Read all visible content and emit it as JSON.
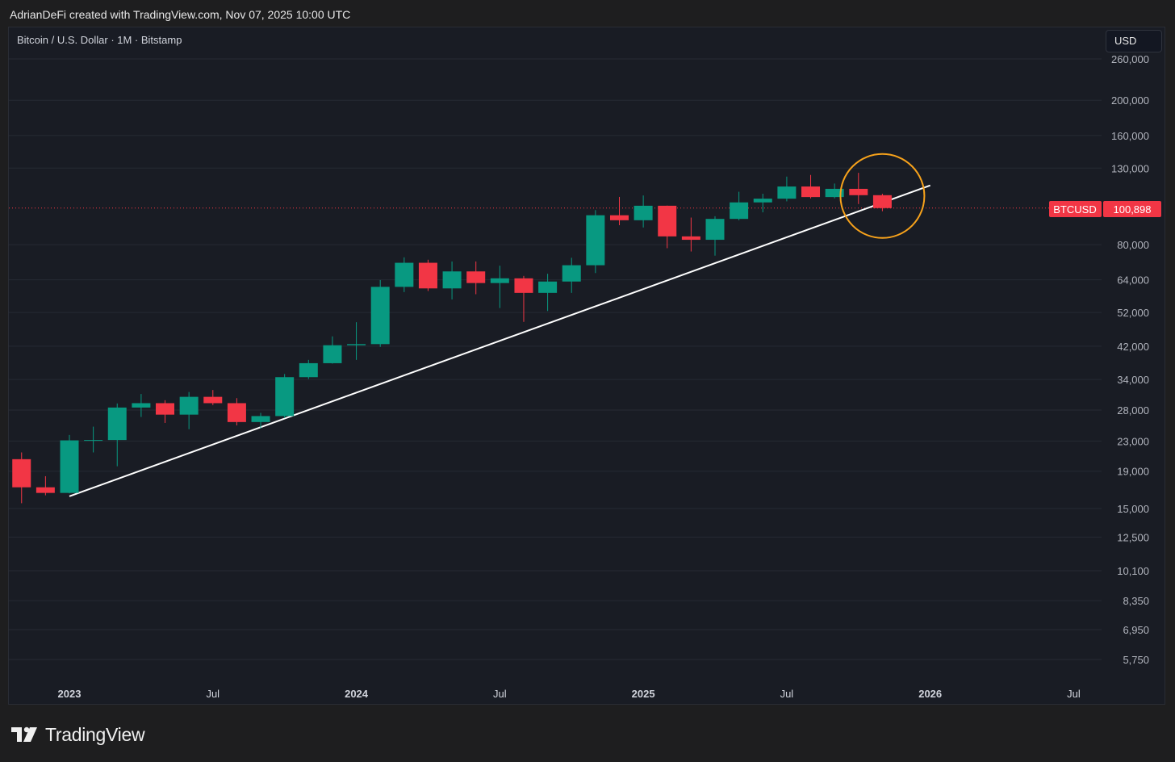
{
  "header": {
    "credit": "AdrianDeFi created with TradingView.com, Nov 07, 2025 10:00 UTC"
  },
  "chart_header": {
    "symbol": "Bitcoin / U.S. Dollar · 1M · Bitstamp",
    "currency": "USD"
  },
  "footer": {
    "brand": "TradingView"
  },
  "colors": {
    "background": "#191c24",
    "up": "#089981",
    "down": "#f23645",
    "trendline": "#ffffff",
    "highlight_circle": "#f7a21b",
    "price_line": "#f23645"
  },
  "chart_data": {
    "type": "candlestick",
    "scale": "log",
    "symbol": "BTCUSD",
    "last_price": "100,898",
    "ylim": [
      5200,
      300000
    ],
    "y_ticks": [
      "260,000",
      "200,000",
      "160,000",
      "130,000",
      "80,000",
      "64,000",
      "52,000",
      "42,000",
      "34,000",
      "28,000",
      "23,000",
      "19,000",
      "15,000",
      "12,500",
      "10,100",
      "8,350",
      "6,950",
      "5,750"
    ],
    "x_ticks": [
      {
        "label": "2023",
        "date": "2023-01",
        "bold": true
      },
      {
        "label": "Jul",
        "date": "2023-07",
        "bold": false
      },
      {
        "label": "2024",
        "date": "2024-01",
        "bold": true
      },
      {
        "label": "Jul",
        "date": "2024-07",
        "bold": false
      },
      {
        "label": "2025",
        "date": "2025-01",
        "bold": true
      },
      {
        "label": "Jul",
        "date": "2025-07",
        "bold": false
      },
      {
        "label": "2026",
        "date": "2026-01",
        "bold": true
      },
      {
        "label": "Jul",
        "date": "2026-07",
        "bold": false
      }
    ],
    "candles": [
      {
        "date": "2022-11",
        "open": 20500,
        "high": 21400,
        "low": 15500,
        "close": 17150
      },
      {
        "date": "2022-12",
        "open": 17150,
        "high": 18400,
        "low": 16300,
        "close": 16550
      },
      {
        "date": "2023-01",
        "open": 16550,
        "high": 23900,
        "low": 16500,
        "close": 23100
      },
      {
        "date": "2023-02",
        "open": 23100,
        "high": 25200,
        "low": 21400,
        "close": 23150
      },
      {
        "date": "2023-03",
        "open": 23150,
        "high": 29200,
        "low": 19600,
        "close": 28450
      },
      {
        "date": "2023-04",
        "open": 28450,
        "high": 31000,
        "low": 26800,
        "close": 29250
      },
      {
        "date": "2023-05",
        "open": 29250,
        "high": 29800,
        "low": 25800,
        "close": 27200
      },
      {
        "date": "2023-06",
        "open": 27200,
        "high": 31400,
        "low": 24800,
        "close": 30450
      },
      {
        "date": "2023-07",
        "open": 30450,
        "high": 31800,
        "low": 28900,
        "close": 29250
      },
      {
        "date": "2023-08",
        "open": 29250,
        "high": 30200,
        "low": 25400,
        "close": 25950
      },
      {
        "date": "2023-09",
        "open": 25950,
        "high": 27500,
        "low": 24900,
        "close": 26950
      },
      {
        "date": "2023-10",
        "open": 26950,
        "high": 35200,
        "low": 26600,
        "close": 34500
      },
      {
        "date": "2023-11",
        "open": 34500,
        "high": 38500,
        "low": 34100,
        "close": 37700
      },
      {
        "date": "2023-12",
        "open": 37700,
        "high": 44700,
        "low": 37600,
        "close": 42250
      },
      {
        "date": "2024-01",
        "open": 42250,
        "high": 48900,
        "low": 38500,
        "close": 42550
      },
      {
        "date": "2024-02",
        "open": 42550,
        "high": 63900,
        "low": 41800,
        "close": 61200
      },
      {
        "date": "2024-03",
        "open": 61200,
        "high": 73800,
        "low": 59200,
        "close": 71300
      },
      {
        "date": "2024-04",
        "open": 71300,
        "high": 72700,
        "low": 59600,
        "close": 60600
      },
      {
        "date": "2024-05",
        "open": 60600,
        "high": 71900,
        "low": 56500,
        "close": 67500
      },
      {
        "date": "2024-06",
        "open": 67500,
        "high": 71900,
        "low": 58400,
        "close": 62700
      },
      {
        "date": "2024-07",
        "open": 62700,
        "high": 70000,
        "low": 53500,
        "close": 64600
      },
      {
        "date": "2024-08",
        "open": 64600,
        "high": 65600,
        "low": 49000,
        "close": 58900
      },
      {
        "date": "2024-09",
        "open": 58900,
        "high": 66500,
        "low": 52500,
        "close": 63300
      },
      {
        "date": "2024-10",
        "open": 63300,
        "high": 73600,
        "low": 58900,
        "close": 70200
      },
      {
        "date": "2024-11",
        "open": 70200,
        "high": 99600,
        "low": 66800,
        "close": 96400
      },
      {
        "date": "2024-12",
        "open": 96400,
        "high": 108300,
        "low": 90500,
        "close": 93400
      },
      {
        "date": "2025-01",
        "open": 93400,
        "high": 109300,
        "low": 89200,
        "close": 102400
      },
      {
        "date": "2025-02",
        "open": 102400,
        "high": 102500,
        "low": 78200,
        "close": 84300
      },
      {
        "date": "2025-03",
        "open": 84300,
        "high": 95000,
        "low": 76600,
        "close": 82500
      },
      {
        "date": "2025-04",
        "open": 82500,
        "high": 95800,
        "low": 74600,
        "close": 94200
      },
      {
        "date": "2025-05",
        "open": 94200,
        "high": 111900,
        "low": 93400,
        "close": 104600
      },
      {
        "date": "2025-06",
        "open": 104600,
        "high": 110500,
        "low": 98200,
        "close": 107100
      },
      {
        "date": "2025-07",
        "open": 107100,
        "high": 123200,
        "low": 105300,
        "close": 115700
      },
      {
        "date": "2025-08",
        "open": 115700,
        "high": 124500,
        "low": 107300,
        "close": 108200
      },
      {
        "date": "2025-09",
        "open": 108200,
        "high": 117900,
        "low": 107300,
        "close": 114000
      },
      {
        "date": "2025-10",
        "open": 114000,
        "high": 126200,
        "low": 103500,
        "close": 109500
      },
      {
        "date": "2025-11",
        "open": 109500,
        "high": 110500,
        "low": 98900,
        "close": 100898
      }
    ],
    "trendline": {
      "from": {
        "date": "2023-01",
        "value": 16200
      },
      "to": {
        "date": "2026-01",
        "value": 116500
      }
    },
    "annotation": {
      "type": "circle",
      "date": "2025-11",
      "value": 100898
    }
  }
}
